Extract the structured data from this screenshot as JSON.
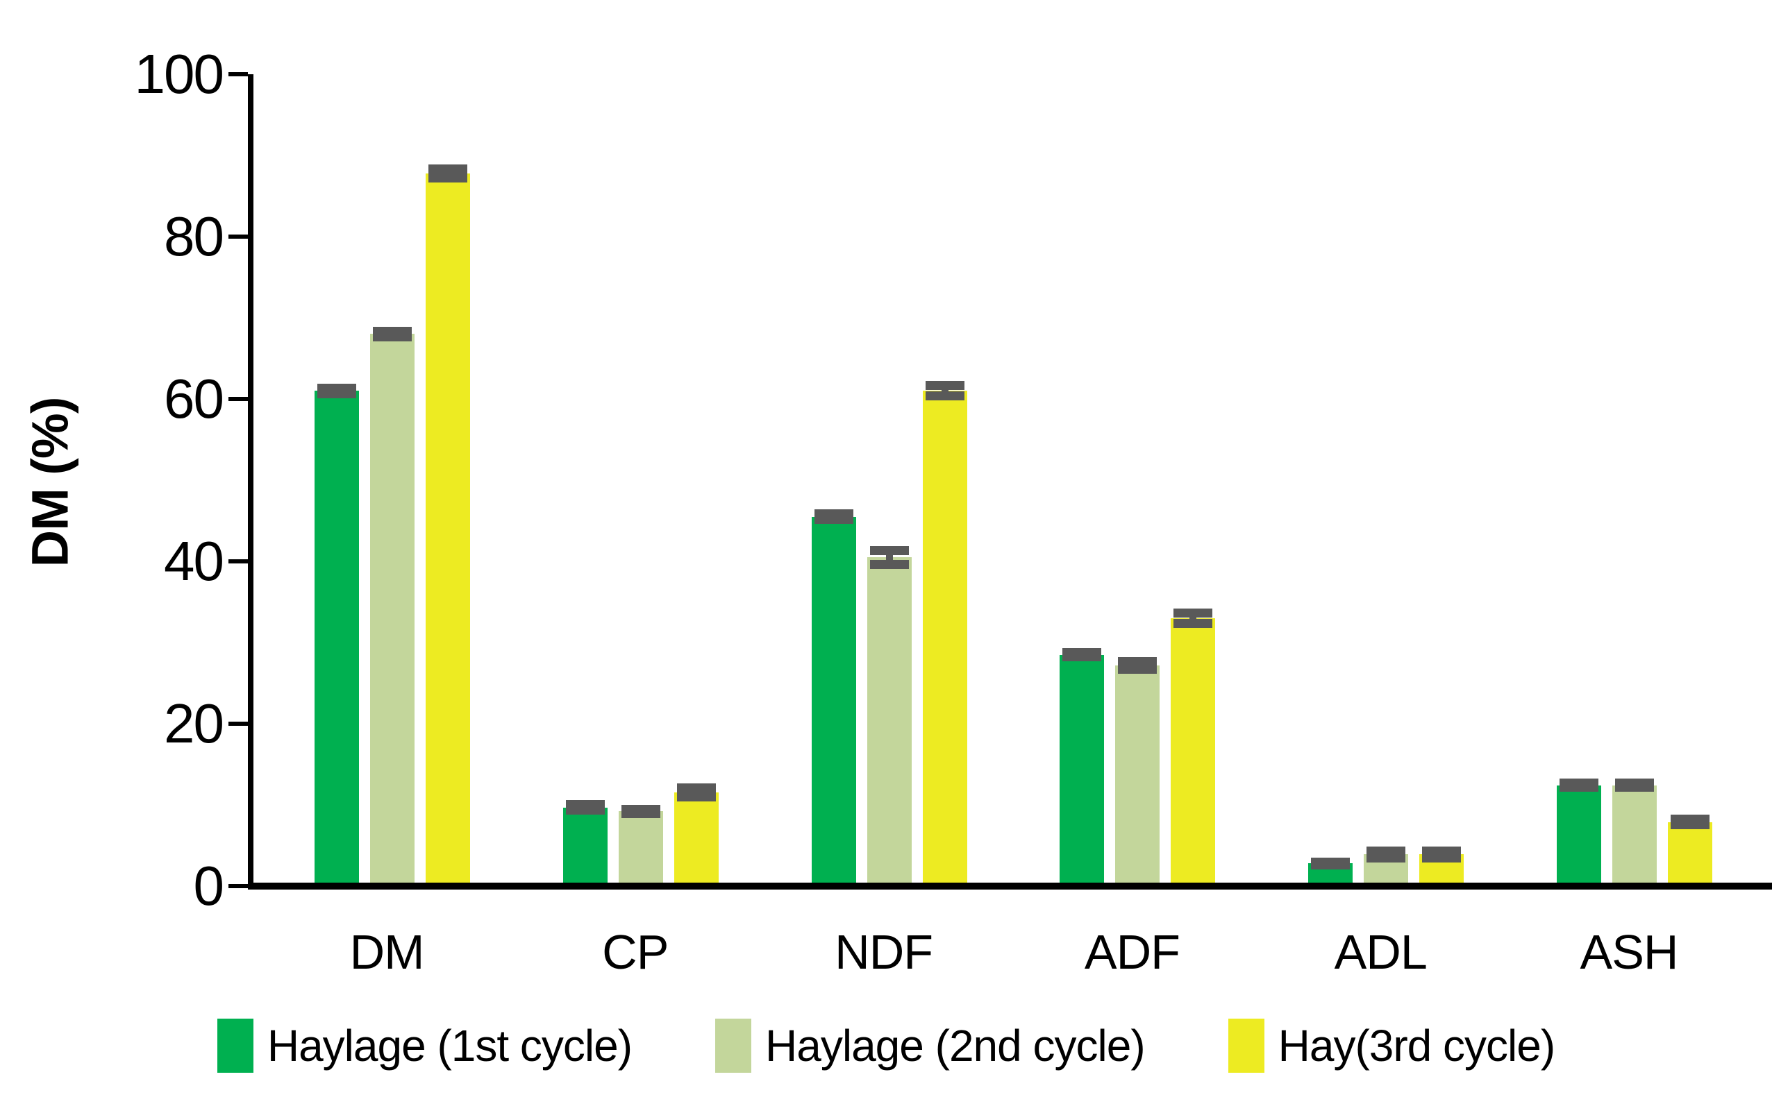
{
  "chart_data": {
    "type": "bar",
    "title": "",
    "xlabel": "",
    "ylabel": "DM (%)",
    "ylim": [
      0,
      100
    ],
    "yticks": [
      0,
      20,
      40,
      60,
      80,
      100
    ],
    "grid": false,
    "legend_position": "bottom",
    "error_bar_color": "#595959",
    "categories": [
      "DM",
      "CP",
      "NDF",
      "ADF",
      "ADL",
      "ASH"
    ],
    "series": [
      {
        "name": "Haylage (1st cycle)",
        "color": "#00B050",
        "values": [
          61.0,
          9.7,
          45.5,
          28.5,
          2.8,
          12.4
        ],
        "errors": [
          0.4,
          0.4,
          0.4,
          0.3,
          0.2,
          0.3
        ]
      },
      {
        "name": "Haylage (2nd cycle)",
        "color": "#C3D69B",
        "values": [
          68.0,
          9.2,
          40.5,
          27.2,
          3.9,
          12.4
        ],
        "errors": [
          0.4,
          0.3,
          0.9,
          0.5,
          0.5,
          0.3
        ]
      },
      {
        "name": "Hay(3rd cycle)",
        "color": "#EDEB22",
        "values": [
          87.8,
          11.5,
          61.0,
          33.0,
          3.9,
          7.9
        ],
        "errors": [
          0.6,
          0.6,
          0.7,
          0.7,
          0.5,
          0.4
        ]
      }
    ]
  }
}
